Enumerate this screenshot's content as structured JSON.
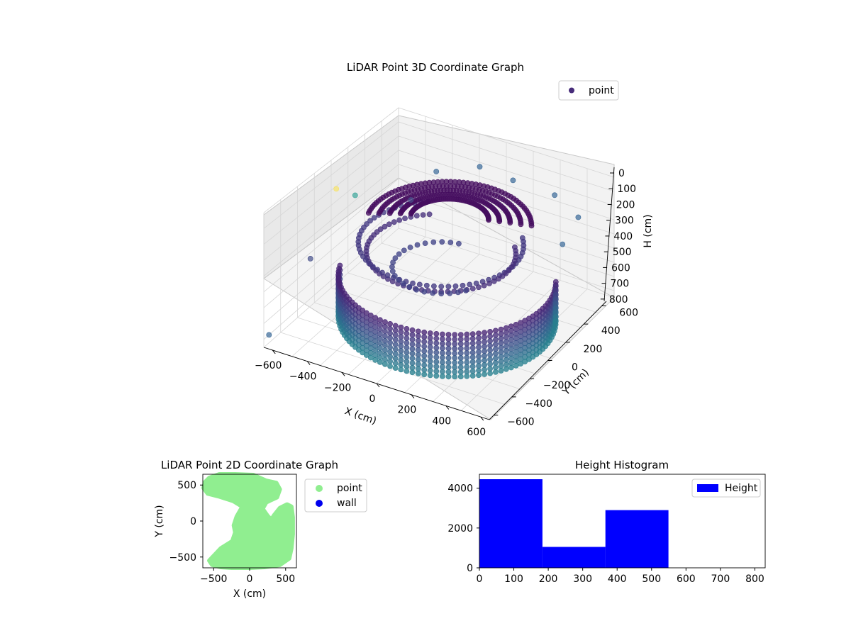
{
  "chart_data": [
    {
      "type": "scatter",
      "projection": "3d",
      "title": "LiDAR Point 3D Coordinate Graph",
      "xlabel": "X (cm)",
      "ylabel": "Y (cm)",
      "zlabel": "H (cm)",
      "xlim": [
        -650,
        650
      ],
      "ylim": [
        -650,
        650
      ],
      "zlim": [
        0,
        850
      ],
      "z_inverted": true,
      "xticks": [
        "−600",
        "−400",
        "−200",
        "0",
        "200",
        "400",
        "600"
      ],
      "yticks": [
        "−600",
        "−400",
        "−200",
        "0",
        "200",
        "400",
        "600"
      ],
      "zticks": [
        "0",
        "100",
        "200",
        "300",
        "400",
        "500",
        "600",
        "700",
        "800"
      ],
      "colormap": "viridis",
      "grid": true,
      "legend": {
        "placement": "upper-right",
        "entries": [
          {
            "label": "point",
            "color": "#472c7a"
          }
        ]
      },
      "points": [
        {
          "x": -620,
          "y": 0,
          "h": 180,
          "color": "#f6e36a"
        },
        {
          "x": -600,
          "y": 150,
          "h": 300,
          "color": "#3aa59a"
        },
        {
          "x": -300,
          "y": 450,
          "h": 200,
          "color": "#3b6a98"
        },
        {
          "x": -100,
          "y": 550,
          "h": 150,
          "color": "#3b6a98"
        },
        {
          "x": 100,
          "y": 550,
          "h": 170,
          "color": "#3b6a98"
        },
        {
          "x": 350,
          "y": 550,
          "h": 180,
          "color": "#3b6a98"
        },
        {
          "x": 550,
          "y": 450,
          "h": 200,
          "color": "#3b6a98"
        },
        {
          "x": 600,
          "y": 200,
          "h": 220,
          "color": "#3b6a98"
        },
        {
          "x": -620,
          "y": -250,
          "h": 500,
          "color": "#46508a"
        },
        {
          "x": -650,
          "y": -600,
          "h": 800,
          "color": "#3b6a98"
        },
        {
          "x": -300,
          "y": 200,
          "h": 250,
          "color": "#46508a"
        }
      ]
    },
    {
      "type": "scatter",
      "title": "LiDAR Point 2D Coordinate Graph",
      "xlabel": "X (cm)",
      "ylabel": "Y (cm)",
      "xlim": [
        -650,
        650
      ],
      "ylim": [
        -650,
        650
      ],
      "xticks": [
        -500,
        0,
        500
      ],
      "yticks": [
        -500,
        0,
        500
      ],
      "xtick_labels": [
        "−500",
        "0",
        "500"
      ],
      "ytick_labels": [
        "−500",
        "0",
        "500"
      ],
      "legend": {
        "placement": "outside-right",
        "entries": [
          {
            "label": "point",
            "color": "#90ee90"
          },
          {
            "label": "wall",
            "color": "#0000ee"
          }
        ]
      },
      "regions": [
        {
          "name": "point",
          "color": "#90ee90",
          "outline": [
            [
              -620,
              540
            ],
            [
              -560,
              600
            ],
            [
              -420,
              650
            ],
            [
              -200,
              650
            ],
            [
              50,
              640
            ],
            [
              230,
              560
            ],
            [
              370,
              530
            ],
            [
              420,
              440
            ],
            [
              380,
              330
            ],
            [
              230,
              260
            ],
            [
              180,
              170
            ],
            [
              250,
              70
            ],
            [
              300,
              20
            ],
            [
              340,
              80
            ],
            [
              420,
              180
            ],
            [
              520,
              230
            ],
            [
              580,
              200
            ],
            [
              600,
              50
            ],
            [
              600,
              -180
            ],
            [
              580,
              -380
            ],
            [
              550,
              -520
            ],
            [
              420,
              -610
            ],
            [
              200,
              -640
            ],
            [
              0,
              -650
            ],
            [
              -250,
              -650
            ],
            [
              -400,
              -640
            ],
            [
              -520,
              -610
            ],
            [
              -560,
              -550
            ],
            [
              -400,
              -380
            ],
            [
              -240,
              -280
            ],
            [
              -200,
              -160
            ],
            [
              -220,
              -60
            ],
            [
              -180,
              60
            ],
            [
              -100,
              200
            ],
            [
              -230,
              280
            ],
            [
              -420,
              340
            ],
            [
              -580,
              380
            ],
            [
              -640,
              460
            ]
          ]
        }
      ]
    },
    {
      "type": "bar",
      "title": "Height Histogram",
      "xlim": [
        0,
        830
      ],
      "ylim": [
        0,
        4700
      ],
      "xticks": [
        0,
        100,
        200,
        300,
        400,
        500,
        600,
        700,
        800
      ],
      "yticks": [
        0,
        2000,
        4000
      ],
      "legend": {
        "placement": "upper-right",
        "entries": [
          {
            "label": "Height",
            "color": "#0000ff"
          }
        ]
      },
      "bins": [
        {
          "start": 0,
          "end": 183,
          "count": 4450
        },
        {
          "start": 183,
          "end": 366,
          "count": 1050
        },
        {
          "start": 366,
          "end": 549,
          "count": 2900
        }
      ],
      "bar_color": "#0000ff"
    }
  ]
}
